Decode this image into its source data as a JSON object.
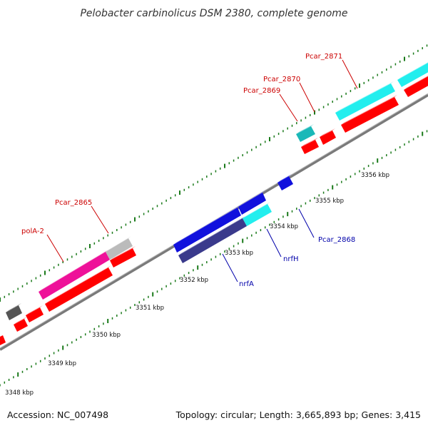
{
  "map": {
    "title": "Pelobacter carbinolicus DSM 2380, complete genome",
    "accession": "Accession: NC_007498",
    "summary": "Topology: circular; Length: 3,665,893 bp; Genes: 3,415",
    "tick_labels": [
      "3348 kbp",
      "3349 kbp",
      "3350 kbp",
      "3351 kbp",
      "3352 kbp",
      "3353 kbp",
      "3354 kbp",
      "3355 kbp",
      "3356 kbp"
    ],
    "gene_labels": [
      {
        "text": "Pcar_2871",
        "color": "#cc0000"
      },
      {
        "text": "Pcar_2870",
        "color": "#cc0000"
      },
      {
        "text": "Pcar_2869",
        "color": "#cc0000"
      },
      {
        "text": "Pcar_2865",
        "color": "#cc0000"
      },
      {
        "text": "polA-2",
        "color": "#cc0000"
      },
      {
        "text": "Pcar_2868",
        "color": "#0000aa"
      },
      {
        "text": "nrfH",
        "color": "#0000aa"
      },
      {
        "text": "nrfA",
        "color": "#0000aa"
      }
    ]
  },
  "colors": {
    "backbone": "#7a7a7a",
    "tick": "#1a7a1a",
    "cds": "#ff0000",
    "cyan_feature": "#22eeee",
    "teal_feature": "#1ab8b8",
    "magenta_feature": "#ee1199",
    "grey_feature": "#bbbbbb",
    "dark_grey_feature": "#555555",
    "blue_feature": "#1111dd",
    "navy_feature": "#3a3a8c"
  }
}
